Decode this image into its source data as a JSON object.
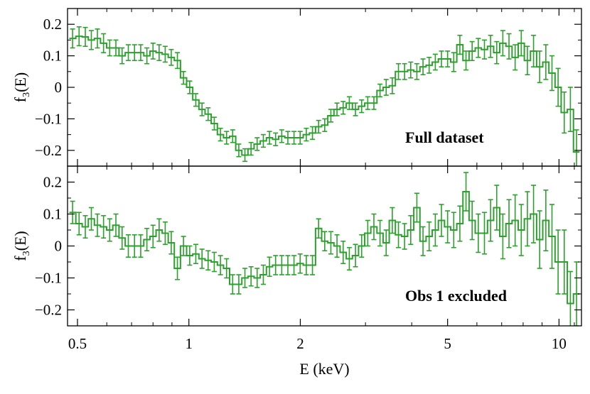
{
  "chart_data": [
    {
      "type": "line",
      "style": "step-with-errorbars",
      "color": "#2ca02c",
      "annotation": "Full dataset",
      "ylabel": "f",
      "ylabel_sub": "3",
      "ylabel_tail": "(E)",
      "xscale": "log",
      "xlim": [
        0.47,
        11.5
      ],
      "ylim": [
        -0.25,
        0.25
      ],
      "yticks": [
        0.2,
        0.1,
        0,
        -0.1,
        -0.2
      ],
      "ytick_labels": [
        "0.2",
        "0.1",
        "0",
        "−0.1",
        "−0.2"
      ],
      "x": [
        0.485,
        0.505,
        0.525,
        0.545,
        0.566,
        0.588,
        0.611,
        0.635,
        0.66,
        0.686,
        0.713,
        0.741,
        0.77,
        0.8,
        0.831,
        0.863,
        0.896,
        0.931,
        0.967,
        1.005,
        1.044,
        1.085,
        1.127,
        1.171,
        1.217,
        1.264,
        1.313,
        1.364,
        1.417,
        1.472,
        1.529,
        1.589,
        1.651,
        1.715,
        1.782,
        1.851,
        1.923,
        1.998,
        2.076,
        2.157,
        2.241,
        2.328,
        2.419,
        2.513,
        2.611,
        2.713,
        2.819,
        2.929,
        3.043,
        3.161,
        3.284,
        3.412,
        3.545,
        3.683,
        3.826,
        3.975,
        4.13,
        4.291,
        4.458,
        4.632,
        4.812,
        5.0,
        5.195,
        5.397,
        5.607,
        5.825,
        6.052,
        6.288,
        6.533,
        6.787,
        7.051,
        7.326,
        7.611,
        7.907,
        8.215,
        8.535,
        8.867,
        9.213,
        9.572,
        9.944,
        10.331,
        10.734,
        11.152
      ],
      "y": [
        0.155,
        0.162,
        0.16,
        0.15,
        0.155,
        0.14,
        0.125,
        0.125,
        0.1,
        0.11,
        0.11,
        0.11,
        0.1,
        0.115,
        0.11,
        0.105,
        0.095,
        0.085,
        0.03,
        0.0,
        -0.04,
        -0.07,
        -0.085,
        -0.115,
        -0.15,
        -0.16,
        -0.155,
        -0.2,
        -0.215,
        -0.195,
        -0.18,
        -0.17,
        -0.16,
        -0.165,
        -0.155,
        -0.16,
        -0.16,
        -0.16,
        -0.15,
        -0.145,
        -0.125,
        -0.12,
        -0.09,
        -0.07,
        -0.065,
        -0.05,
        -0.07,
        -0.06,
        -0.05,
        -0.05,
        -0.01,
        0.0,
        0.005,
        0.05,
        0.05,
        0.055,
        0.05,
        0.065,
        0.07,
        0.08,
        0.09,
        0.09,
        0.08,
        0.135,
        0.085,
        0.115,
        0.125,
        0.12,
        0.13,
        0.11,
        0.14,
        0.13,
        0.095,
        0.14,
        0.085,
        0.115,
        0.065,
        0.08,
        0.045,
        0.0,
        -0.08,
        -0.07,
        -0.205
      ],
      "yerr": [
        0.03,
        0.03,
        0.03,
        0.03,
        0.03,
        0.03,
        0.025,
        0.025,
        0.025,
        0.025,
        0.025,
        0.025,
        0.025,
        0.025,
        0.025,
        0.025,
        0.025,
        0.025,
        0.02,
        0.02,
        0.02,
        0.02,
        0.02,
        0.02,
        0.02,
        0.02,
        0.02,
        0.02,
        0.02,
        0.02,
        0.02,
        0.02,
        0.02,
        0.02,
        0.02,
        0.02,
        0.02,
        0.02,
        0.02,
        0.02,
        0.02,
        0.02,
        0.02,
        0.02,
        0.02,
        0.02,
        0.02,
        0.02,
        0.02,
        0.02,
        0.02,
        0.025,
        0.025,
        0.025,
        0.025,
        0.025,
        0.025,
        0.025,
        0.025,
        0.025,
        0.025,
        0.025,
        0.03,
        0.03,
        0.03,
        0.03,
        0.03,
        0.03,
        0.035,
        0.035,
        0.04,
        0.04,
        0.04,
        0.04,
        0.045,
        0.05,
        0.05,
        0.055,
        0.055,
        0.06,
        0.065,
        0.07,
        0.07
      ]
    },
    {
      "type": "line",
      "style": "step-with-errorbars",
      "color": "#2ca02c",
      "annotation": "Obs 1 excluded",
      "ylabel": "f",
      "ylabel_sub": "3",
      "ylabel_tail": "(E)",
      "xlabel": "E (keV)",
      "xscale": "log",
      "xlim": [
        0.47,
        11.5
      ],
      "ylim": [
        -0.25,
        0.25
      ],
      "yticks": [
        0.2,
        0.1,
        0,
        -0.1,
        -0.2
      ],
      "ytick_labels": [
        "0.2",
        "0.1",
        "0",
        "−0.1",
        "−0.2"
      ],
      "xticks": [
        0.5,
        1,
        2,
        5,
        10
      ],
      "xtick_labels": [
        "0.5",
        "1",
        "2",
        "5",
        "10"
      ],
      "x": [
        0.485,
        0.505,
        0.525,
        0.545,
        0.566,
        0.588,
        0.611,
        0.635,
        0.66,
        0.686,
        0.713,
        0.741,
        0.77,
        0.8,
        0.831,
        0.863,
        0.896,
        0.931,
        0.967,
        1.005,
        1.044,
        1.085,
        1.127,
        1.171,
        1.217,
        1.264,
        1.313,
        1.364,
        1.417,
        1.472,
        1.529,
        1.589,
        1.651,
        1.715,
        1.782,
        1.851,
        1.923,
        1.998,
        2.076,
        2.157,
        2.241,
        2.328,
        2.419,
        2.513,
        2.611,
        2.713,
        2.819,
        2.929,
        3.043,
        3.161,
        3.284,
        3.412,
        3.545,
        3.683,
        3.826,
        3.975,
        4.13,
        4.291,
        4.458,
        4.632,
        4.812,
        5.0,
        5.195,
        5.397,
        5.607,
        5.825,
        6.052,
        6.288,
        6.533,
        6.787,
        7.051,
        7.326,
        7.611,
        7.907,
        8.215,
        8.535,
        8.867,
        9.213,
        9.572,
        9.944,
        10.331,
        10.734,
        11.152
      ],
      "y": [
        0.105,
        0.07,
        0.06,
        0.085,
        0.065,
        0.06,
        0.05,
        0.065,
        0.025,
        0.0,
        0.0,
        0.0,
        0.02,
        0.03,
        0.05,
        0.04,
        0.01,
        -0.07,
        0.0,
        -0.03,
        -0.025,
        -0.04,
        -0.045,
        -0.05,
        -0.06,
        -0.07,
        -0.12,
        -0.12,
        -0.1,
        -0.095,
        -0.1,
        -0.09,
        -0.065,
        -0.06,
        -0.06,
        -0.06,
        -0.06,
        -0.055,
        -0.06,
        -0.06,
        0.055,
        0.015,
        0.01,
        0.0,
        -0.02,
        -0.04,
        -0.03,
        0.0,
        0.04,
        0.06,
        0.04,
        0.01,
        0.08,
        0.035,
        0.03,
        0.05,
        0.12,
        0.015,
        0.03,
        0.05,
        0.08,
        0.06,
        0.05,
        0.07,
        0.17,
        0.08,
        0.04,
        0.04,
        0.08,
        0.12,
        0.03,
        0.07,
        0.08,
        0.05,
        0.085,
        0.1,
        0.02,
        0.08,
        0.03,
        -0.05,
        -0.05,
        -0.18,
        -0.15
      ],
      "yerr": [
        0.035,
        0.035,
        0.035,
        0.035,
        0.035,
        0.035,
        0.035,
        0.035,
        0.035,
        0.035,
        0.035,
        0.035,
        0.035,
        0.035,
        0.035,
        0.035,
        0.035,
        0.035,
        0.03,
        0.03,
        0.03,
        0.03,
        0.03,
        0.03,
        0.03,
        0.03,
        0.03,
        0.03,
        0.03,
        0.03,
        0.03,
        0.03,
        0.03,
        0.03,
        0.03,
        0.03,
        0.03,
        0.03,
        0.03,
        0.03,
        0.03,
        0.03,
        0.035,
        0.035,
        0.035,
        0.035,
        0.035,
        0.035,
        0.04,
        0.04,
        0.04,
        0.04,
        0.04,
        0.04,
        0.04,
        0.045,
        0.045,
        0.045,
        0.045,
        0.05,
        0.05,
        0.05,
        0.055,
        0.055,
        0.06,
        0.06,
        0.06,
        0.065,
        0.065,
        0.07,
        0.07,
        0.075,
        0.08,
        0.08,
        0.085,
        0.09,
        0.09,
        0.095,
        0.1,
        0.1,
        0.1,
        0.1,
        0.1
      ]
    }
  ]
}
